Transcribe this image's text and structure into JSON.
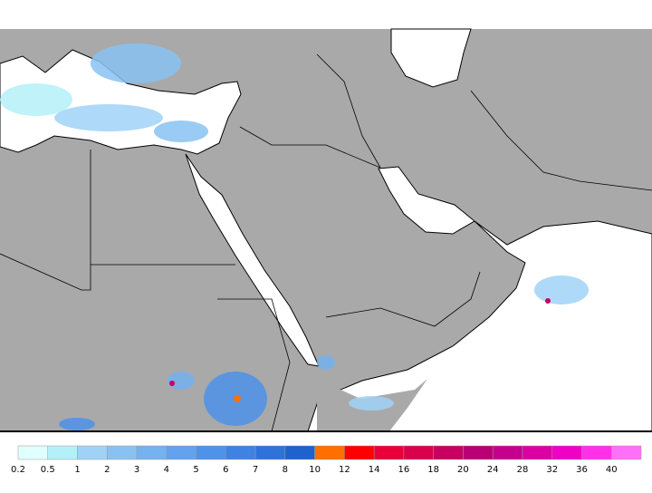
{
  "legend": {
    "ticks": [
      0.2,
      0.5,
      1,
      2,
      3,
      4,
      5,
      6,
      7,
      8,
      10,
      12,
      14,
      16,
      18,
      20,
      24,
      28,
      32,
      36,
      40
    ],
    "colors": [
      "#e0ffff",
      "#b4f0f8",
      "#a0d2f8",
      "#88c2f2",
      "#74b2f0",
      "#62a2ee",
      "#4e92ea",
      "#3e82e2",
      "#2e72da",
      "#1e62cc",
      "#ff7000",
      "#ff0000",
      "#ea0038",
      "#da004c",
      "#c80060",
      "#b80074",
      "#c4008c",
      "#dc00a4",
      "#f000c4",
      "#ff30e8",
      "#ff70f8"
    ]
  }
}
